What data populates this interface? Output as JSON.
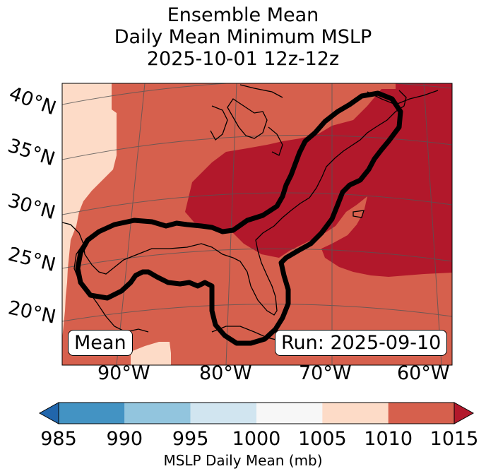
{
  "title": {
    "line1": "Ensemble Mean",
    "line2": "Daily Mean Minimum MSLP",
    "line3": "2025-10-01 12z-12z"
  },
  "map": {
    "lat_labels": [
      "40°N",
      "35°N",
      "30°N",
      "25°N",
      "20°N"
    ],
    "lon_labels": [
      "90°W",
      "80°W",
      "70°W",
      "60°W"
    ],
    "inset_left": "Mean",
    "inset_right": "Run: 2025-09-10",
    "region_values_mb": {
      "west_edge": "1005-1010",
      "southeast_us_gulf_caribbean": "1010-1015",
      "interior_east_and_atlantic": ">1015"
    }
  },
  "colorbar": {
    "ticks": [
      "985",
      "990",
      "995",
      "1000",
      "1005",
      "1010",
      "1015"
    ],
    "label": "MSLP Daily Mean (mb)",
    "bins": [
      {
        "range": "<985",
        "color": "#2166ac"
      },
      {
        "range": "985-990",
        "color": "#4393c3"
      },
      {
        "range": "990-995",
        "color": "#92c5de"
      },
      {
        "range": "995-1000",
        "color": "#d1e5f0"
      },
      {
        "range": "1000-1005",
        "color": "#f7f7f7"
      },
      {
        "range": "1005-1010",
        "color": "#fddbc7"
      },
      {
        "range": "1010-1015",
        "color": "#d6604d"
      },
      {
        "range": ">1015",
        "color": "#b2182b"
      }
    ]
  },
  "colors": {
    "light": "#fddbc7",
    "mid": "#d6604d",
    "dark": "#b2182b"
  }
}
